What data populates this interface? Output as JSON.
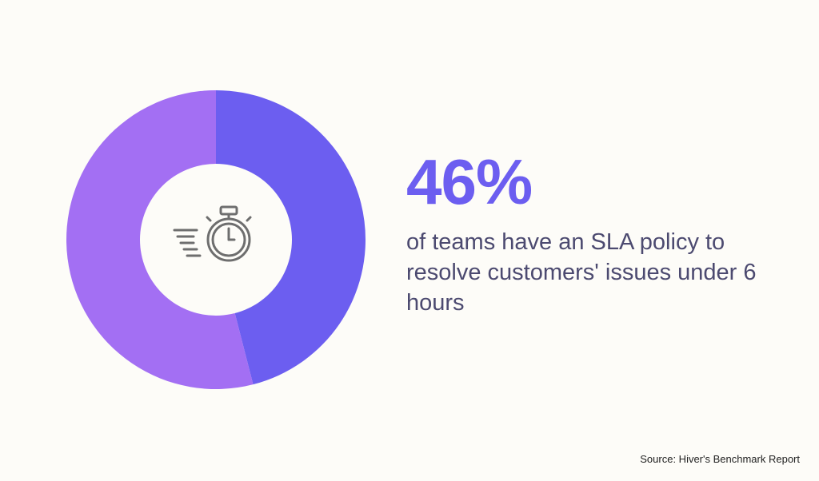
{
  "chart_data": {
    "type": "pie",
    "donut": true,
    "slices": [
      {
        "label": "",
        "value": 46,
        "color": "#6c5ef0"
      },
      {
        "label": "",
        "value": 54,
        "color": "#a36ff3"
      }
    ],
    "center_icon": "stopwatch-icon"
  },
  "headline": {
    "value": "46%",
    "color": "#6c5ef0"
  },
  "description": "of teams have an SLA policy to resolve customers' issues under 6 hours",
  "source": "Source: Hiver's Benchmark Report"
}
